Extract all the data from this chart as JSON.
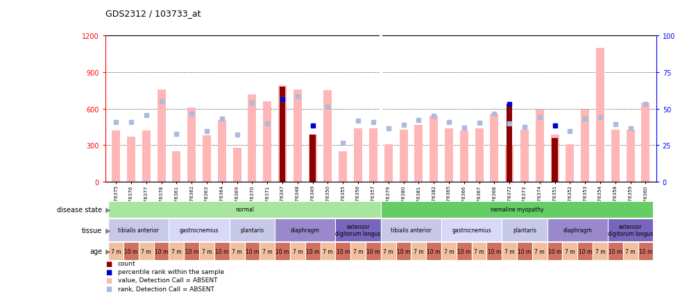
{
  "title": "GDS2312 / 103733_at",
  "samples": [
    "GSM76375",
    "GSM76376",
    "GSM76377",
    "GSM76378",
    "GSM76361",
    "GSM76362",
    "GSM76363",
    "GSM76364",
    "GSM76369",
    "GSM76370",
    "GSM76371",
    "GSM76347",
    "GSM76348",
    "GSM76349",
    "GSM76350",
    "GSM76355",
    "GSM76356",
    "GSM76357",
    "GSM76379",
    "GSM76380",
    "GSM76381",
    "GSM76382",
    "GSM76365",
    "GSM76366",
    "GSM76367",
    "GSM76368",
    "GSM76372",
    "GSM76373",
    "GSM76374",
    "GSM76351",
    "GSM76352",
    "GSM76353",
    "GSM76354",
    "GSM76358",
    "GSM76359",
    "GSM76360"
  ],
  "values": [
    420,
    370,
    420,
    760,
    250,
    610,
    380,
    510,
    280,
    720,
    660,
    790,
    760,
    390,
    750,
    250,
    440,
    440,
    310,
    430,
    470,
    540,
    440,
    420,
    440,
    560,
    300,
    430,
    590,
    390,
    310,
    590,
    1100,
    430,
    430,
    650
  ],
  "counts": [
    null,
    null,
    null,
    null,
    null,
    null,
    null,
    null,
    null,
    null,
    null,
    780,
    null,
    390,
    null,
    null,
    null,
    null,
    null,
    null,
    null,
    null,
    null,
    null,
    null,
    null,
    640,
    null,
    null,
    360,
    null,
    null,
    null,
    null,
    null,
    null
  ],
  "ranks": [
    490,
    490,
    545,
    660,
    395,
    560,
    415,
    520,
    390,
    650,
    480,
    680,
    700,
    460,
    615,
    320,
    500,
    490,
    440,
    470,
    510,
    540,
    490,
    445,
    485,
    560,
    480,
    450,
    530,
    460,
    415,
    520,
    530,
    475,
    440,
    640
  ],
  "pct_ranks": [
    null,
    null,
    null,
    null,
    null,
    null,
    null,
    null,
    null,
    null,
    null,
    680,
    null,
    460,
    null,
    null,
    null,
    null,
    null,
    null,
    null,
    null,
    null,
    null,
    null,
    null,
    640,
    null,
    null,
    460,
    null,
    null,
    null,
    null,
    null,
    null
  ],
  "ylim_left": [
    0,
    1200
  ],
  "ylim_right": [
    0,
    100
  ],
  "yticks_left": [
    0,
    300,
    600,
    900,
    1200
  ],
  "yticks_right": [
    0,
    25,
    50,
    75,
    100
  ],
  "bar_color_pink": "#FFB6B6",
  "bar_color_dark_red": "#8B0000",
  "rank_color_light_blue": "#AABBDD",
  "pct_rank_color_dark_blue": "#0000CC",
  "disease_state_groups": [
    {
      "label": "normal",
      "start": 0,
      "end": 18,
      "color": "#A8E6A0"
    },
    {
      "label": "nemaline myopathy",
      "start": 18,
      "end": 36,
      "color": "#66CC66"
    }
  ],
  "tissue_groups": [
    {
      "label": "tibialis anterior",
      "start": 0,
      "end": 4,
      "color": "#C8C8E8"
    },
    {
      "label": "gastrocnemius",
      "start": 4,
      "end": 8,
      "color": "#D8D8F8"
    },
    {
      "label": "plantaris",
      "start": 8,
      "end": 11,
      "color": "#C8C8E8"
    },
    {
      "label": "diaphragm",
      "start": 11,
      "end": 15,
      "color": "#9988CC"
    },
    {
      "label": "extensor\ndigitorum longus",
      "start": 15,
      "end": 18,
      "color": "#7766BB"
    },
    {
      "label": "tibialis anterior",
      "start": 18,
      "end": 22,
      "color": "#C8C8E8"
    },
    {
      "label": "gastrocnemius",
      "start": 22,
      "end": 26,
      "color": "#D8D8F8"
    },
    {
      "label": "plantaris",
      "start": 26,
      "end": 29,
      "color": "#C8C8E8"
    },
    {
      "label": "diaphragm",
      "start": 29,
      "end": 33,
      "color": "#9988CC"
    },
    {
      "label": "extensor\ndigitorum longus",
      "start": 33,
      "end": 36,
      "color": "#7766BB"
    }
  ],
  "age_groups": [
    {
      "label": "7 m",
      "start": 0,
      "end": 1,
      "color": "#F0C0A0"
    },
    {
      "label": "10 m",
      "start": 1,
      "end": 2,
      "color": "#D07060"
    },
    {
      "label": "7 m",
      "start": 2,
      "end": 3,
      "color": "#F0C0A0"
    },
    {
      "label": "10 m",
      "start": 3,
      "end": 4,
      "color": "#D07060"
    },
    {
      "label": "7 m",
      "start": 4,
      "end": 5,
      "color": "#F0C0A0"
    },
    {
      "label": "10 m",
      "start": 5,
      "end": 6,
      "color": "#D07060"
    },
    {
      "label": "7 m",
      "start": 6,
      "end": 7,
      "color": "#F0C0A0"
    },
    {
      "label": "10 m",
      "start": 7,
      "end": 8,
      "color": "#D07060"
    },
    {
      "label": "7 m",
      "start": 8,
      "end": 9,
      "color": "#F0C0A0"
    },
    {
      "label": "10 m",
      "start": 9,
      "end": 10,
      "color": "#D07060"
    },
    {
      "label": "7 m",
      "start": 10,
      "end": 11,
      "color": "#F0C0A0"
    },
    {
      "label": "10 m",
      "start": 11,
      "end": 12,
      "color": "#D07060"
    },
    {
      "label": "7 m",
      "start": 12,
      "end": 13,
      "color": "#F0C0A0"
    },
    {
      "label": "10 m",
      "start": 13,
      "end": 14,
      "color": "#D07060"
    },
    {
      "label": "7 m",
      "start": 14,
      "end": 15,
      "color": "#F0C0A0"
    },
    {
      "label": "10 m",
      "start": 15,
      "end": 16,
      "color": "#D07060"
    },
    {
      "label": "7 m",
      "start": 16,
      "end": 17,
      "color": "#F0C0A0"
    },
    {
      "label": "10 m",
      "start": 17,
      "end": 18,
      "color": "#D07060"
    },
    {
      "label": "7 m",
      "start": 18,
      "end": 19,
      "color": "#F0C0A0"
    },
    {
      "label": "10 m",
      "start": 19,
      "end": 20,
      "color": "#D07060"
    },
    {
      "label": "7 m",
      "start": 20,
      "end": 21,
      "color": "#F0C0A0"
    },
    {
      "label": "10 m",
      "start": 21,
      "end": 22,
      "color": "#D07060"
    },
    {
      "label": "7 m",
      "start": 22,
      "end": 23,
      "color": "#F0C0A0"
    },
    {
      "label": "10 m",
      "start": 23,
      "end": 24,
      "color": "#D07060"
    },
    {
      "label": "7 m",
      "start": 24,
      "end": 25,
      "color": "#F0C0A0"
    },
    {
      "label": "10 m",
      "start": 25,
      "end": 26,
      "color": "#D07060"
    },
    {
      "label": "7 m",
      "start": 26,
      "end": 27,
      "color": "#F0C0A0"
    },
    {
      "label": "10 m",
      "start": 27,
      "end": 28,
      "color": "#D07060"
    },
    {
      "label": "7 m",
      "start": 28,
      "end": 29,
      "color": "#F0C0A0"
    },
    {
      "label": "10 m",
      "start": 29,
      "end": 30,
      "color": "#D07060"
    },
    {
      "label": "7 m",
      "start": 30,
      "end": 31,
      "color": "#F0C0A0"
    },
    {
      "label": "10 m",
      "start": 31,
      "end": 32,
      "color": "#D07060"
    },
    {
      "label": "7 m",
      "start": 32,
      "end": 33,
      "color": "#F0C0A0"
    },
    {
      "label": "10 m",
      "start": 33,
      "end": 34,
      "color": "#D07060"
    },
    {
      "label": "7 m",
      "start": 34,
      "end": 35,
      "color": "#F0C0A0"
    },
    {
      "label": "10 m",
      "start": 35,
      "end": 36,
      "color": "#D07060"
    }
  ],
  "legend_items": [
    {
      "label": "count",
      "color": "#8B0000"
    },
    {
      "label": "percentile rank within the sample",
      "color": "#0000CC"
    },
    {
      "label": "value, Detection Call = ABSENT",
      "color": "#FFB6B6"
    },
    {
      "label": "rank, Detection Call = ABSENT",
      "color": "#AABBDD"
    }
  ]
}
